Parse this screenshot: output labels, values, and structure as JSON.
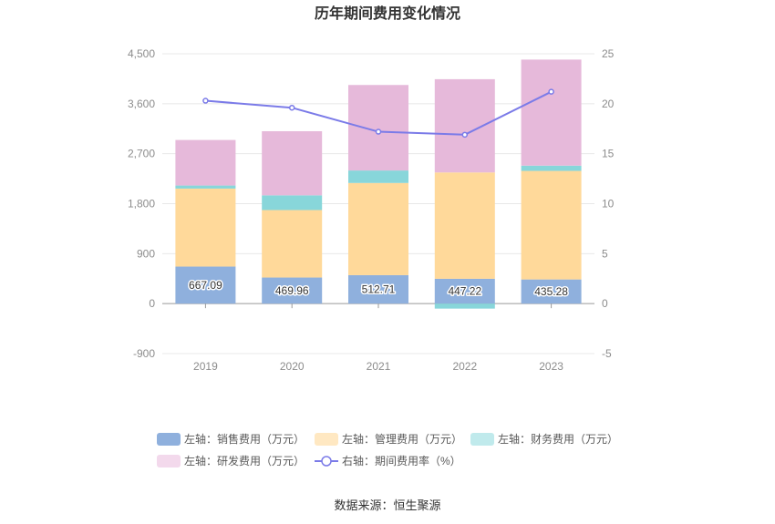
{
  "chart_data": {
    "type": "bar",
    "title": "历年期间费用变化情况",
    "categories": [
      "2019",
      "2020",
      "2021",
      "2022",
      "2023"
    ],
    "left_axis": {
      "min": -900,
      "max": 4500,
      "ticks": [
        "-900",
        "0",
        "900",
        "1,800",
        "2,700",
        "3,600",
        "4,500"
      ],
      "tick_values": [
        -900,
        0,
        900,
        1800,
        2700,
        3600,
        4500
      ]
    },
    "right_axis": {
      "min": -5,
      "max": 25,
      "ticks": [
        "-5",
        "0",
        "5",
        "10",
        "15",
        "20",
        "25"
      ],
      "tick_values": [
        -5,
        0,
        5,
        10,
        15,
        20,
        25
      ]
    },
    "series": [
      {
        "name": "左轴：销售费用（万元）",
        "type": "bar",
        "axis": "left",
        "color": "#8fb0dd",
        "values": [
          667.09,
          469.96,
          512.71,
          447.22,
          435.28
        ],
        "labels": [
          "667.09",
          "469.96",
          "512.71",
          "447.22",
          "435.28"
        ]
      },
      {
        "name": "左轴：管理费用（万元）",
        "type": "bar",
        "axis": "left",
        "color": "#ffd99a",
        "values": [
          1405,
          1215,
          1660,
          1915,
          1955
        ]
      },
      {
        "name": "左轴：财务费用（万元）",
        "type": "bar",
        "axis": "left",
        "color": "#88d6da",
        "values": [
          55,
          265,
          225,
          -90,
          95
        ]
      },
      {
        "name": "左轴：研发费用（万元）",
        "type": "bar",
        "axis": "left",
        "color": "#e6b9da",
        "values": [
          820,
          1155,
          1540,
          1680,
          1910
        ]
      },
      {
        "name": "右轴：期间费用率（%）",
        "type": "line",
        "axis": "right",
        "color": "#7b7be8",
        "values": [
          20.3,
          19.6,
          17.2,
          16.9,
          21.2
        ]
      }
    ],
    "legend_position": "bottom",
    "grid": true
  },
  "source": "数据来源：恒生聚源"
}
